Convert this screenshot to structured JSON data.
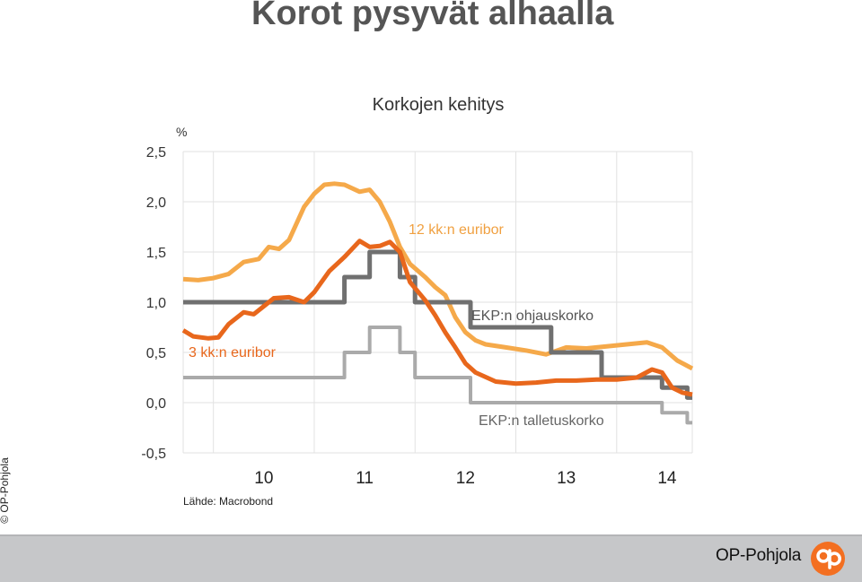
{
  "slide": {
    "title": "Korot pysyvät alhaalla",
    "source": "Lähde: Macrobond",
    "copyright": "© OP-Pohjola"
  },
  "footer": {
    "brand_name": "OP-Pohjola",
    "brand_color": "#f36f21",
    "background": "#c6c7c9"
  },
  "chart_data": {
    "type": "line",
    "title": "Korkojen kehitys",
    "ylabel": "%",
    "ylim": [
      -0.5,
      2.5
    ],
    "yticks": [
      2.5,
      2.0,
      1.5,
      1.0,
      0.5,
      0.0,
      -0.5
    ],
    "ytick_labels": [
      "2,5",
      "2,0",
      "1,5",
      "1,0",
      "0,5",
      "0,0",
      "-0,5"
    ],
    "xlim": [
      2009.7,
      2014.75
    ],
    "xticks": [
      2010.5,
      2011.5,
      2012.5,
      2013.5,
      2014.5
    ],
    "xtick_labels": [
      "10",
      "11",
      "12",
      "13",
      "14"
    ],
    "grid": true,
    "series": [
      {
        "name": "12 kk:n euribor",
        "color": "#f5a94a",
        "x": [
          2009.7,
          2009.85,
          2010.0,
          2010.15,
          2010.3,
          2010.45,
          2010.55,
          2010.65,
          2010.75,
          2010.9,
          2011.0,
          2011.1,
          2011.2,
          2011.3,
          2011.45,
          2011.55,
          2011.65,
          2011.75,
          2011.85,
          2011.95,
          2012.1,
          2012.2,
          2012.3,
          2012.4,
          2012.5,
          2012.6,
          2012.7,
          2012.9,
          2013.1,
          2013.3,
          2013.5,
          2013.7,
          2013.9,
          2014.1,
          2014.3,
          2014.45,
          2014.6,
          2014.75
        ],
        "values": [
          1.23,
          1.22,
          1.24,
          1.28,
          1.4,
          1.43,
          1.55,
          1.53,
          1.62,
          1.95,
          2.08,
          2.17,
          2.18,
          2.17,
          2.1,
          2.12,
          2.0,
          1.8,
          1.55,
          1.38,
          1.25,
          1.15,
          1.07,
          0.85,
          0.7,
          0.62,
          0.58,
          0.55,
          0.52,
          0.48,
          0.55,
          0.54,
          0.56,
          0.58,
          0.6,
          0.55,
          0.42,
          0.34
        ]
      },
      {
        "name": "3 kk:n euribor",
        "color": "#e8671c",
        "x": [
          2009.7,
          2009.8,
          2009.95,
          2010.05,
          2010.15,
          2010.3,
          2010.4,
          2010.5,
          2010.6,
          2010.75,
          2010.9,
          2011.0,
          2011.15,
          2011.3,
          2011.45,
          2011.55,
          2011.65,
          2011.75,
          2011.85,
          2011.95,
          2012.1,
          2012.2,
          2012.3,
          2012.4,
          2012.5,
          2012.6,
          2012.8,
          2013.0,
          2013.2,
          2013.4,
          2013.6,
          2013.8,
          2014.0,
          2014.2,
          2014.35,
          2014.45,
          2014.55,
          2014.65,
          2014.75
        ],
        "values": [
          0.72,
          0.66,
          0.64,
          0.65,
          0.78,
          0.9,
          0.88,
          0.96,
          1.04,
          1.05,
          1.0,
          1.1,
          1.31,
          1.45,
          1.61,
          1.55,
          1.56,
          1.6,
          1.5,
          1.2,
          1.02,
          0.87,
          0.7,
          0.55,
          0.39,
          0.3,
          0.21,
          0.19,
          0.2,
          0.22,
          0.22,
          0.23,
          0.23,
          0.25,
          0.33,
          0.3,
          0.15,
          0.1,
          0.08
        ]
      },
      {
        "name": "EKP:n ohjauskorko",
        "color": "#707070",
        "x": [
          2009.7,
          2010.5,
          2010.5,
          2011.3,
          2011.3,
          2011.55,
          2011.55,
          2011.85,
          2011.85,
          2012.0,
          2012.0,
          2012.55,
          2012.55,
          2013.35,
          2013.35,
          2013.85,
          2013.85,
          2014.45,
          2014.45,
          2014.7,
          2014.7,
          2014.75
        ],
        "values": [
          1.0,
          1.0,
          1.0,
          1.0,
          1.25,
          1.25,
          1.5,
          1.5,
          1.25,
          1.25,
          1.0,
          1.0,
          0.75,
          0.75,
          0.5,
          0.5,
          0.25,
          0.25,
          0.15,
          0.15,
          0.05,
          0.05
        ]
      },
      {
        "name": "EKP:n talletuskorko",
        "color": "#aaaaaa",
        "x": [
          2009.7,
          2011.3,
          2011.3,
          2011.55,
          2011.55,
          2011.85,
          2011.85,
          2012.0,
          2012.0,
          2012.55,
          2012.55,
          2014.45,
          2014.45,
          2014.7,
          2014.7,
          2014.75
        ],
        "values": [
          0.25,
          0.25,
          0.5,
          0.5,
          0.75,
          0.75,
          0.5,
          0.5,
          0.25,
          0.25,
          0.0,
          0.0,
          -0.1,
          -0.1,
          -0.2,
          -0.2
        ]
      }
    ]
  }
}
